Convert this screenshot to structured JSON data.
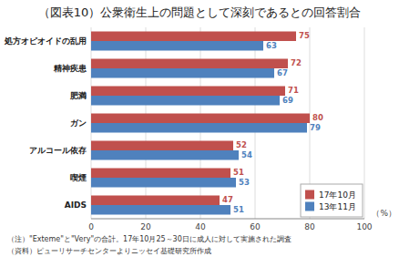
{
  "chart_data": {
    "type": "bar",
    "orientation": "horizontal",
    "title": "（図表10）公衆衛生上の問題として深刻であるとの回答割合",
    "categories": [
      "処方オピオイドの乱用",
      "精神疾患",
      "肥満",
      "ガン",
      "アルコール依存",
      "喫煙",
      "AIDS"
    ],
    "series": [
      {
        "name": "17年10月",
        "color": "#c0504d",
        "values": [
          75,
          72,
          71,
          80,
          52,
          51,
          47
        ]
      },
      {
        "name": "13年11月",
        "color": "#4f81bd",
        "values": [
          63,
          67,
          69,
          79,
          54,
          53,
          51
        ]
      }
    ],
    "x_label": "（%）",
    "annotations": [
      "（注）\"Exteme\"と\"Very\"の合計。17年10月25～30日に成人に対して実施された調査",
      "（資料）ピューリサーチセンターよりニッセイ基礎研究所作成"
    ],
    "xlim": [
      0,
      100
    ],
    "xticks": [
      0,
      20,
      40,
      60,
      80,
      100
    ],
    "grid": true,
    "legend": "lower right",
    "data_labels": true
  }
}
